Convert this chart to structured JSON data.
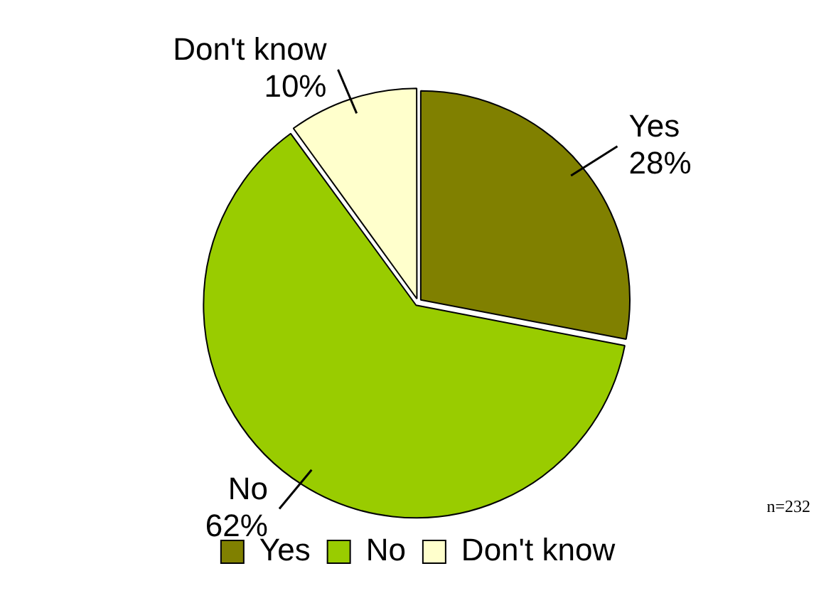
{
  "chart_data": {
    "type": "pie",
    "categories": [
      "Yes",
      "No",
      "Don't know"
    ],
    "values": [
      28,
      62,
      10
    ],
    "colors": [
      "#808000",
      "#99cc00",
      "#ffffcc"
    ],
    "value_labels": [
      "28%",
      "62%",
      "10%"
    ],
    "legend": "bottom",
    "annotations": [
      "n=232"
    ]
  }
}
